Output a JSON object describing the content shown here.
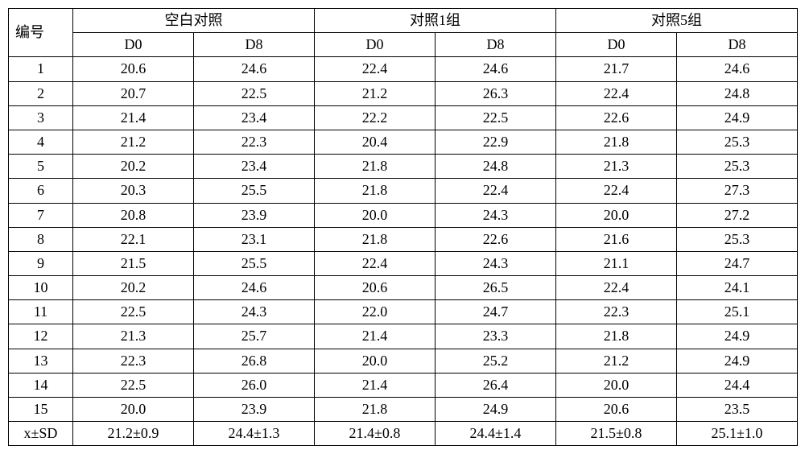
{
  "header": {
    "id_label": "编号",
    "groups": [
      "空白对照",
      "对照1组",
      "对照5组"
    ],
    "sub": [
      "D0",
      "D8"
    ]
  },
  "rows": [
    {
      "id": "1",
      "v": [
        "20.6",
        "24.6",
        "22.4",
        "24.6",
        "21.7",
        "24.6"
      ]
    },
    {
      "id": "2",
      "v": [
        "20.7",
        "22.5",
        "21.2",
        "26.3",
        "22.4",
        "24.8"
      ]
    },
    {
      "id": "3",
      "v": [
        "21.4",
        "23.4",
        "22.2",
        "22.5",
        "22.6",
        "24.9"
      ]
    },
    {
      "id": "4",
      "v": [
        "21.2",
        "22.3",
        "20.4",
        "22.9",
        "21.8",
        "25.3"
      ]
    },
    {
      "id": "5",
      "v": [
        "20.2",
        "23.4",
        "21.8",
        "24.8",
        "21.3",
        "25.3"
      ]
    },
    {
      "id": "6",
      "v": [
        "20.3",
        "25.5",
        "21.8",
        "22.4",
        "22.4",
        "27.3"
      ]
    },
    {
      "id": "7",
      "v": [
        "20.8",
        "23.9",
        "20.0",
        "24.3",
        "20.0",
        "27.2"
      ]
    },
    {
      "id": "8",
      "v": [
        "22.1",
        "23.1",
        "21.8",
        "22.6",
        "21.6",
        "25.3"
      ]
    },
    {
      "id": "9",
      "v": [
        "21.5",
        "25.5",
        "22.4",
        "24.3",
        "21.1",
        "24.7"
      ]
    },
    {
      "id": "10",
      "v": [
        "20.2",
        "24.6",
        "20.6",
        "26.5",
        "22.4",
        "24.1"
      ]
    },
    {
      "id": "11",
      "v": [
        "22.5",
        "24.3",
        "22.0",
        "24.7",
        "22.3",
        "25.1"
      ]
    },
    {
      "id": "12",
      "v": [
        "21.3",
        "25.7",
        "21.4",
        "23.3",
        "21.8",
        "24.9"
      ]
    },
    {
      "id": "13",
      "v": [
        "22.3",
        "26.8",
        "20.0",
        "25.2",
        "21.2",
        "24.9"
      ]
    },
    {
      "id": "14",
      "v": [
        "22.5",
        "26.0",
        "21.4",
        "26.4",
        "20.0",
        "24.4"
      ]
    },
    {
      "id": "15",
      "v": [
        "20.0",
        "23.9",
        "21.8",
        "24.9",
        "20.6",
        "23.5"
      ]
    }
  ],
  "summary": {
    "label": "x±SD",
    "v": [
      "21.2±0.9",
      "24.4±1.3",
      "21.4±0.8",
      "24.4±1.4",
      "21.5±0.8",
      "25.1±1.0"
    ]
  }
}
